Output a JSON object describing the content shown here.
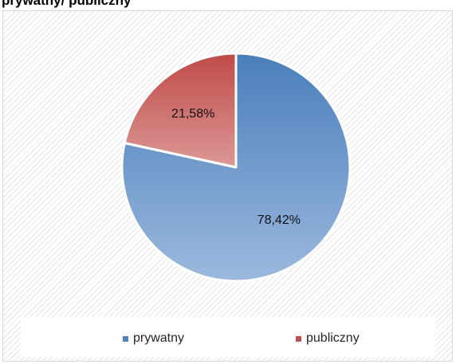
{
  "chart_data": {
    "type": "pie",
    "title": "prywatny/ publiczny",
    "categories": [
      "prywatny",
      "publiczny"
    ],
    "values": [
      78.42,
      21.58
    ],
    "data_labels": [
      "78,42%",
      "21,58%"
    ],
    "colors": [
      "#4f81bd",
      "#c0504d"
    ],
    "legend_placement": "bottom"
  }
}
